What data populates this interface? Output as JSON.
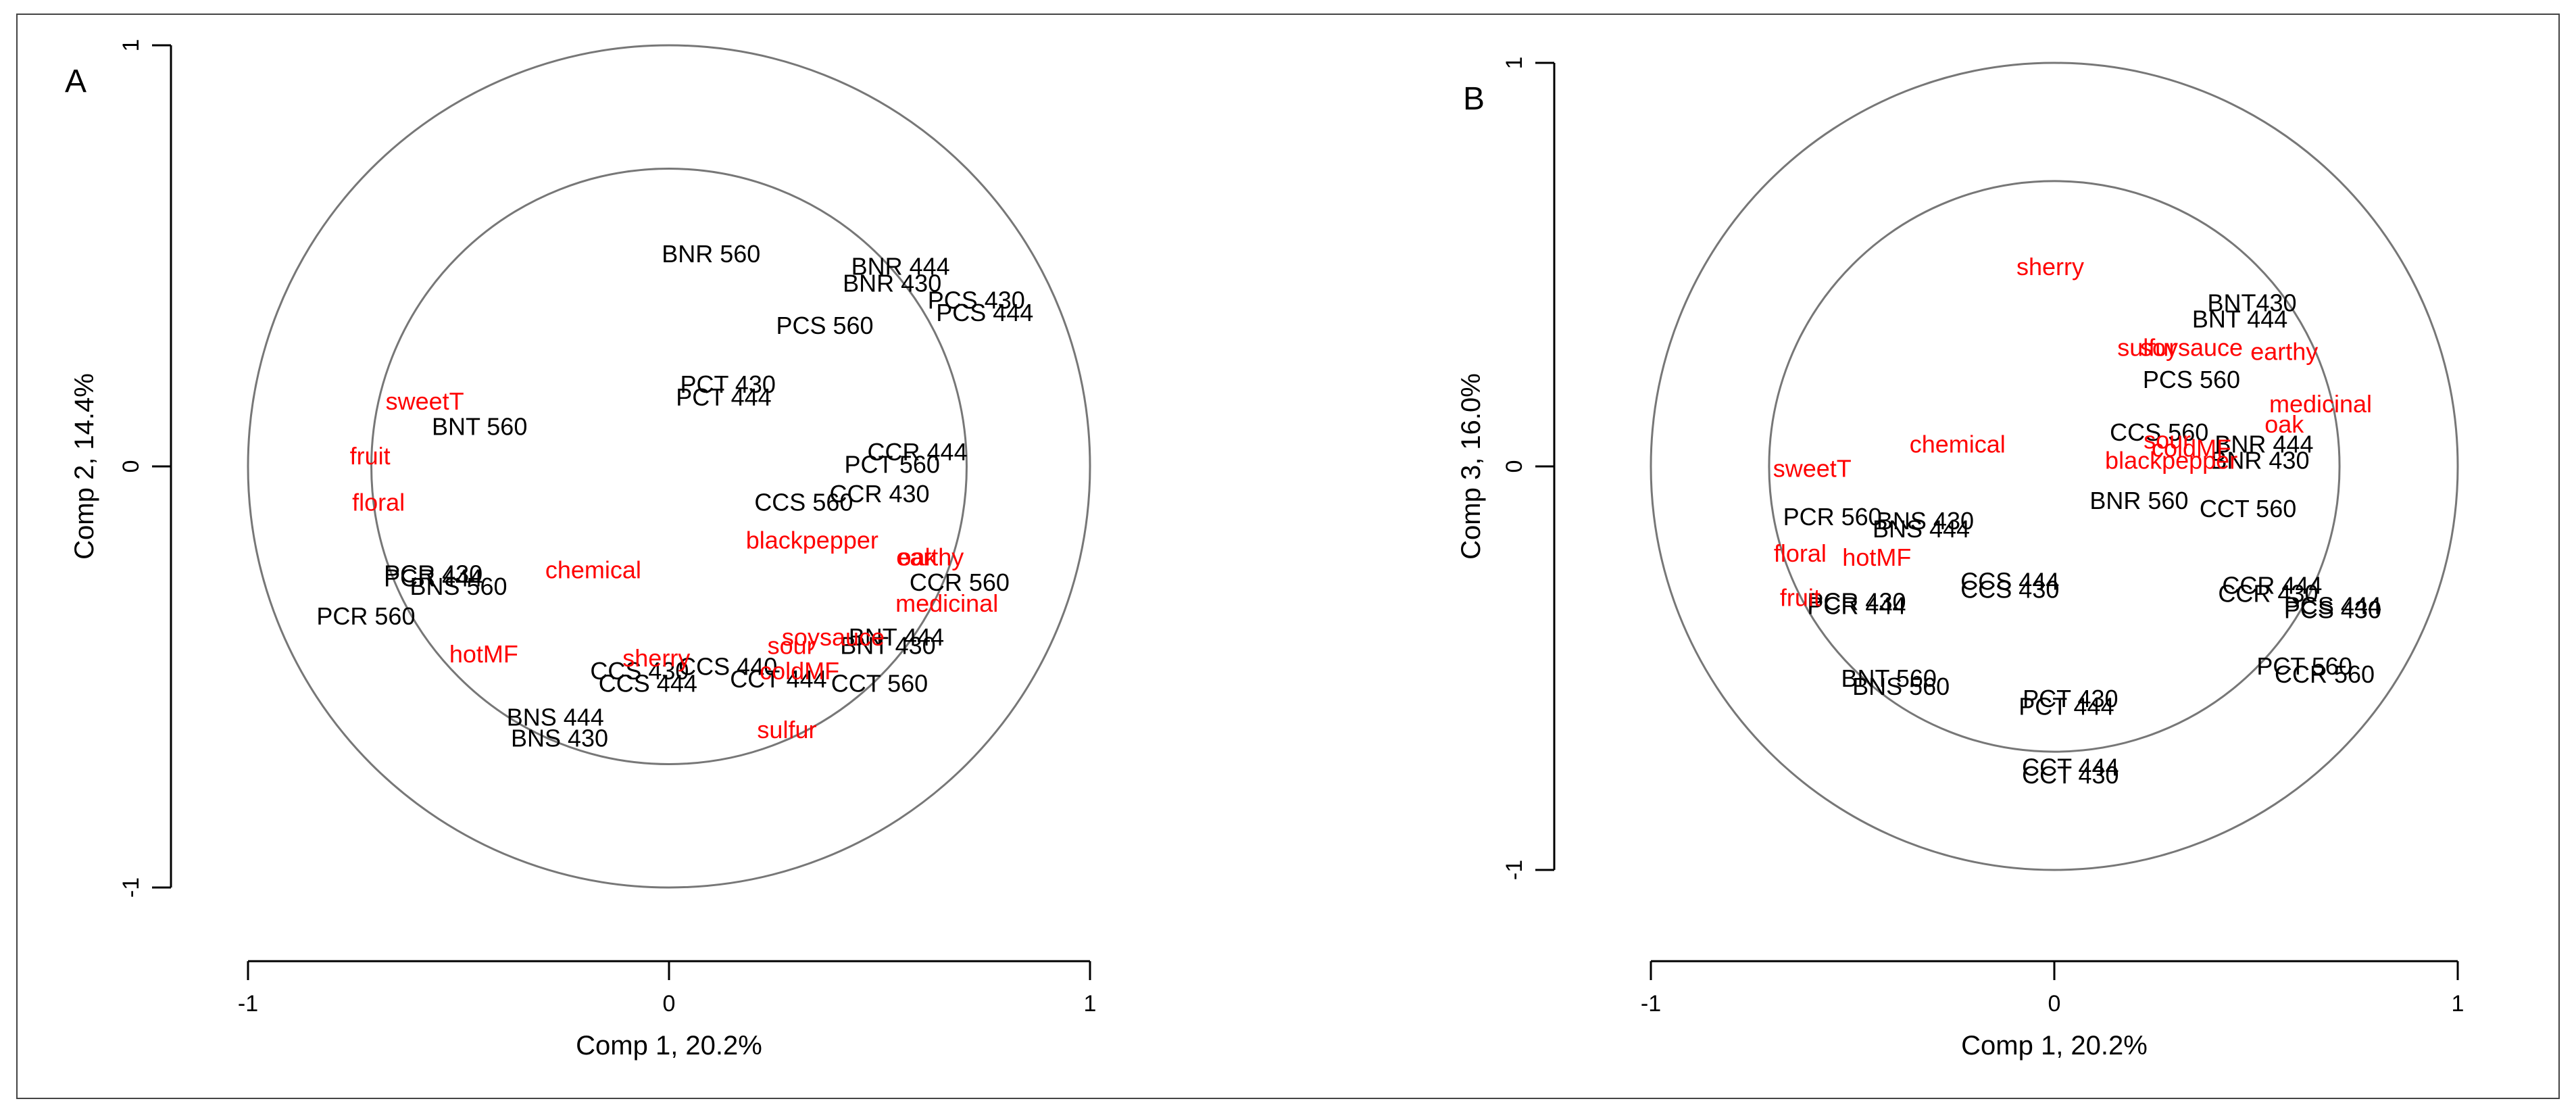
{
  "chart_data": [
    {
      "type": "scatter",
      "panel_label": "A",
      "xlabel": "Comp 1, 20.2%",
      "ylabel": "Comp 2, 14.4%",
      "xlim": [
        -1,
        1
      ],
      "ylim": [
        -1,
        1
      ],
      "x_ticks": [
        "-1",
        "0",
        "1"
      ],
      "y_ticks": [
        "1",
        "0",
        "-1"
      ],
      "circle_radii": [
        1.0,
        0.707
      ],
      "colors": {
        "sample": "#000000",
        "attribute": "#ff0000",
        "circle": "#777777",
        "axis": "#000000"
      },
      "samples": [
        {
          "label": "BNR 560",
          "x": 0.1,
          "y": 0.5
        },
        {
          "label": "BNR 444",
          "x": 0.55,
          "y": 0.47
        },
        {
          "label": "BNR 430",
          "x": 0.53,
          "y": 0.43
        },
        {
          "label": "PCS 430",
          "x": 0.73,
          "y": 0.39
        },
        {
          "label": "PCS 444",
          "x": 0.75,
          "y": 0.36
        },
        {
          "label": "PCS 560",
          "x": 0.37,
          "y": 0.33
        },
        {
          "label": "PCT 430",
          "x": 0.14,
          "y": 0.19
        },
        {
          "label": "PCT 444",
          "x": 0.13,
          "y": 0.16
        },
        {
          "label": "BNT 560",
          "x": -0.45,
          "y": 0.09
        },
        {
          "label": "CCR 444",
          "x": 0.59,
          "y": 0.03
        },
        {
          "label": "PCT 560",
          "x": 0.53,
          "y": 0.0
        },
        {
          "label": "CCR 430",
          "x": 0.5,
          "y": -0.07
        },
        {
          "label": "CCS 560",
          "x": 0.32,
          "y": -0.09
        },
        {
          "label": "PCR 430",
          "x": -0.56,
          "y": -0.26
        },
        {
          "label": "PCR 444",
          "x": -0.56,
          "y": -0.27
        },
        {
          "label": "BNS 560",
          "x": -0.5,
          "y": -0.29
        },
        {
          "label": "PCR 560",
          "x": -0.72,
          "y": -0.36
        },
        {
          "label": "CCR 560",
          "x": 0.69,
          "y": -0.28
        },
        {
          "label": "BNT 444",
          "x": 0.54,
          "y": -0.41
        },
        {
          "label": "BNT 430",
          "x": 0.52,
          "y": -0.43
        },
        {
          "label": "CCS 430",
          "x": -0.07,
          "y": -0.49
        },
        {
          "label": "CCS 444",
          "x": -0.05,
          "y": -0.52
        },
        {
          "label": "CCS 440",
          "x": 0.14,
          "y": -0.48
        },
        {
          "label": "CCT 444",
          "x": 0.26,
          "y": -0.51
        },
        {
          "label": "CCT 560",
          "x": 0.5,
          "y": -0.52
        },
        {
          "label": "BNS 444",
          "x": -0.27,
          "y": -0.6
        },
        {
          "label": "BNS 430",
          "x": -0.26,
          "y": -0.65
        }
      ],
      "attributes": [
        {
          "label": "sweetT",
          "x": -0.58,
          "y": 0.15
        },
        {
          "label": "fruit",
          "x": -0.71,
          "y": 0.02
        },
        {
          "label": "floral",
          "x": -0.69,
          "y": -0.09
        },
        {
          "label": "chemical",
          "x": -0.18,
          "y": -0.25
        },
        {
          "label": "blackpepper",
          "x": 0.34,
          "y": -0.18
        },
        {
          "label": "earthy",
          "x": 0.62,
          "y": -0.22
        },
        {
          "label": "oak",
          "x": 0.59,
          "y": -0.22
        },
        {
          "label": "medicinal",
          "x": 0.66,
          "y": -0.33
        },
        {
          "label": "hotMF",
          "x": -0.44,
          "y": -0.45
        },
        {
          "label": "sherry",
          "x": -0.03,
          "y": -0.46
        },
        {
          "label": "sour",
          "x": 0.29,
          "y": -0.43
        },
        {
          "label": "soysauce",
          "x": 0.39,
          "y": -0.41
        },
        {
          "label": "coldMF",
          "x": 0.31,
          "y": -0.49
        },
        {
          "label": "sulfur",
          "x": 0.28,
          "y": -0.63
        }
      ]
    },
    {
      "type": "scatter",
      "panel_label": "B",
      "xlabel": "Comp 1, 20.2%",
      "ylabel": "Comp 3, 16.0%",
      "xlim": [
        -1,
        1
      ],
      "ylim": [
        -1,
        1
      ],
      "x_ticks": [
        "-1",
        "0",
        "1"
      ],
      "y_ticks": [
        "1",
        "0",
        "-1"
      ],
      "circle_radii": [
        1.0,
        0.707
      ],
      "colors": {
        "sample": "#000000",
        "attribute": "#ff0000",
        "circle": "#777777",
        "axis": "#000000"
      },
      "samples": [
        {
          "label": "BNT430",
          "x": 0.49,
          "y": 0.4
        },
        {
          "label": "BNT 444",
          "x": 0.46,
          "y": 0.36
        },
        {
          "label": "PCS 560",
          "x": 0.34,
          "y": 0.21
        },
        {
          "label": "CCS 560",
          "x": 0.26,
          "y": 0.08
        },
        {
          "label": "BNR 444",
          "x": 0.52,
          "y": 0.05
        },
        {
          "label": "BNR 430",
          "x": 0.51,
          "y": 0.01
        },
        {
          "label": "BNR 560",
          "x": 0.21,
          "y": -0.09
        },
        {
          "label": "CCT 560",
          "x": 0.48,
          "y": -0.11
        },
        {
          "label": "PCR 560",
          "x": -0.55,
          "y": -0.13
        },
        {
          "label": "BNS 430",
          "x": -0.32,
          "y": -0.14
        },
        {
          "label": "BNS 444",
          "x": -0.33,
          "y": -0.16
        },
        {
          "label": "CCS 444",
          "x": -0.11,
          "y": -0.29
        },
        {
          "label": "CCS 430",
          "x": -0.11,
          "y": -0.31
        },
        {
          "label": "CCR 444",
          "x": 0.54,
          "y": -0.3
        },
        {
          "label": "CCR 430",
          "x": 0.53,
          "y": -0.32
        },
        {
          "label": "PCR 430",
          "x": -0.49,
          "y": -0.34
        },
        {
          "label": "PCR 444",
          "x": -0.49,
          "y": -0.35
        },
        {
          "label": "PCS 444",
          "x": 0.69,
          "y": -0.35
        },
        {
          "label": "PCS 430",
          "x": 0.69,
          "y": -0.36
        },
        {
          "label": "PCT 560",
          "x": 0.62,
          "y": -0.5
        },
        {
          "label": "CCR 560",
          "x": 0.67,
          "y": -0.52
        },
        {
          "label": "BNT 560",
          "x": -0.41,
          "y": -0.53
        },
        {
          "label": "BNS 560",
          "x": -0.38,
          "y": -0.55
        },
        {
          "label": "PCT 430",
          "x": 0.04,
          "y": -0.58
        },
        {
          "label": "PCT 444",
          "x": 0.03,
          "y": -0.6
        },
        {
          "label": "CCT 444",
          "x": 0.04,
          "y": -0.75
        },
        {
          "label": "CCT 430",
          "x": 0.04,
          "y": -0.77
        }
      ],
      "attributes": [
        {
          "label": "sherry",
          "x": -0.01,
          "y": 0.49
        },
        {
          "label": "sulfur",
          "x": 0.23,
          "y": 0.29
        },
        {
          "label": "soysauce",
          "x": 0.34,
          "y": 0.29
        },
        {
          "label": "earthy",
          "x": 0.57,
          "y": 0.28
        },
        {
          "label": "medicinal",
          "x": 0.66,
          "y": 0.15
        },
        {
          "label": "oak",
          "x": 0.57,
          "y": 0.1
        },
        {
          "label": "chemical",
          "x": -0.24,
          "y": 0.05
        },
        {
          "label": "sour",
          "x": 0.28,
          "y": 0.06
        },
        {
          "label": "coldMF",
          "x": 0.34,
          "y": 0.04
        },
        {
          "label": "blackpepper",
          "x": 0.29,
          "y": 0.01
        },
        {
          "label": "sweetT",
          "x": -0.6,
          "y": -0.01
        },
        {
          "label": "floral",
          "x": -0.63,
          "y": -0.22
        },
        {
          "label": "hotMF",
          "x": -0.44,
          "y": -0.23
        },
        {
          "label": "fruit",
          "x": -0.63,
          "y": -0.33
        }
      ]
    }
  ]
}
